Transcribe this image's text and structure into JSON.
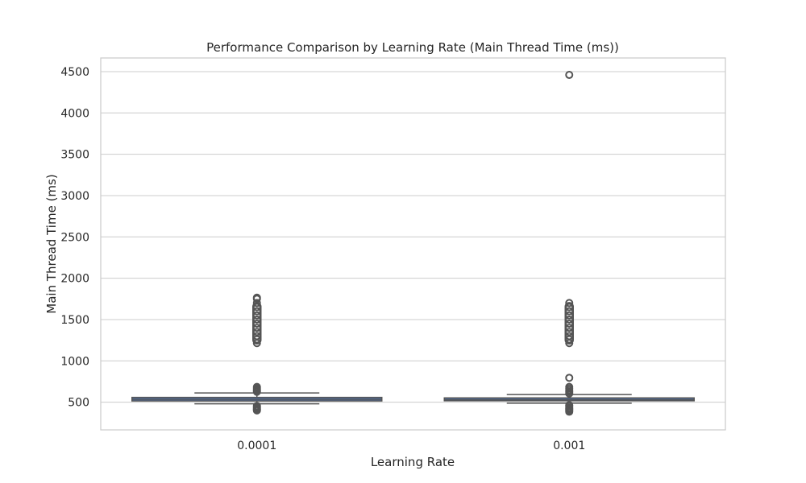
{
  "chart_data": {
    "type": "box",
    "title": "Performance Comparison by Learning Rate (Main Thread Time (ms))",
    "xlabel": "Learning Rate",
    "ylabel": "Main Thread Time (ms)",
    "categories": [
      "0.0001",
      "0.001"
    ],
    "ylim": [
      165,
      4665
    ],
    "yticks": [
      500,
      1000,
      1500,
      2000,
      2500,
      3000,
      3500,
      4000,
      4500
    ],
    "grid": true,
    "box_color": "#4c72b0",
    "line_color": "#555555",
    "boxes": [
      {
        "category": "0.0001",
        "whisker_low": 480,
        "q1": 515,
        "median": 535,
        "q3": 558,
        "whisker_high": 612,
        "outliers_high_cluster": [
          1210,
          1700
        ],
        "outliers_high_points": [
          1215,
          1260,
          1300,
          1350,
          1400,
          1450,
          1500,
          1550,
          1600,
          1650,
          1700,
          1750,
          1765
        ],
        "outliers_mid_points": [
          625,
          640,
          655,
          670,
          685
        ],
        "outliers_low_points": [
          400,
          412,
          425,
          440,
          455
        ]
      },
      {
        "category": "0.001",
        "whisker_low": 488,
        "q1": 517,
        "median": 530,
        "q3": 552,
        "whisker_high": 592,
        "outliers_high_cluster": [
          1210,
          1700
        ],
        "outliers_high_points": [
          1215,
          1260,
          1300,
          1350,
          1400,
          1450,
          1500,
          1550,
          1600,
          1650,
          1700
        ],
        "outliers_mid_points": [
          605,
          625,
          645,
          665,
          685,
          795
        ],
        "outliers_low_points": [
          385,
          400,
          415,
          430,
          450,
          465
        ],
        "outliers_extreme": [
          4460
        ]
      }
    ]
  }
}
